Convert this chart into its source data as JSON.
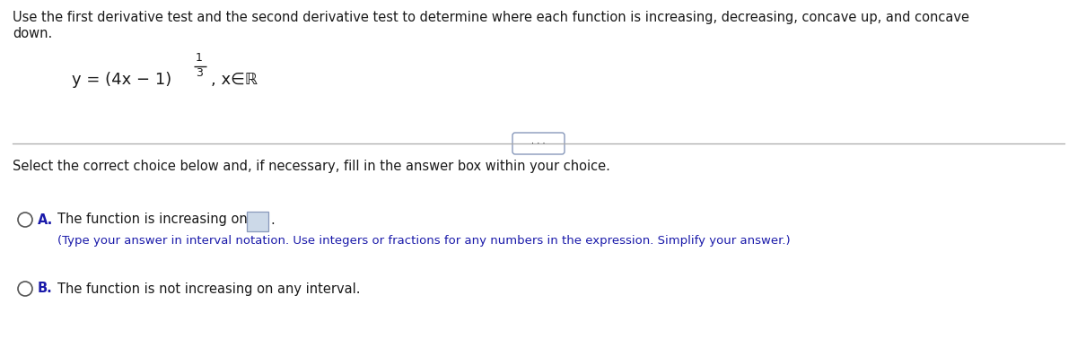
{
  "bg_color": "#ffffff",
  "header_text_line1": "Use the first derivative test and the second derivative test to determine where each function is increasing, decreasing, concave up, and concave",
  "header_text_line2": "down.",
  "select_text": "Select the correct choice below and, if necessary, fill in the answer box within your choice.",
  "option_a_label": "A.",
  "option_a_text": "The function is increasing on",
  "option_a_subtext": "(Type your answer in interval notation. Use integers or fractions for any numbers in the expression. Simplify your answer.)",
  "option_b_label": "B.",
  "option_b_text": "The function is not increasing on any interval.",
  "text_color_black": "#1a1a1a",
  "text_color_blue": "#1a1aaa",
  "circle_color": "#555555",
  "box_fill": "#ccd9e8",
  "box_edge": "#8899bb",
  "divider_color": "#aaaaaa",
  "dot_box_edge": "#8899bb",
  "dot_box_fill": "#ffffff",
  "header_fontsize": 10.5,
  "body_fontsize": 10.5,
  "sub_fontsize": 9.5,
  "formula_fontsize": 13,
  "sup_fontsize": 9
}
